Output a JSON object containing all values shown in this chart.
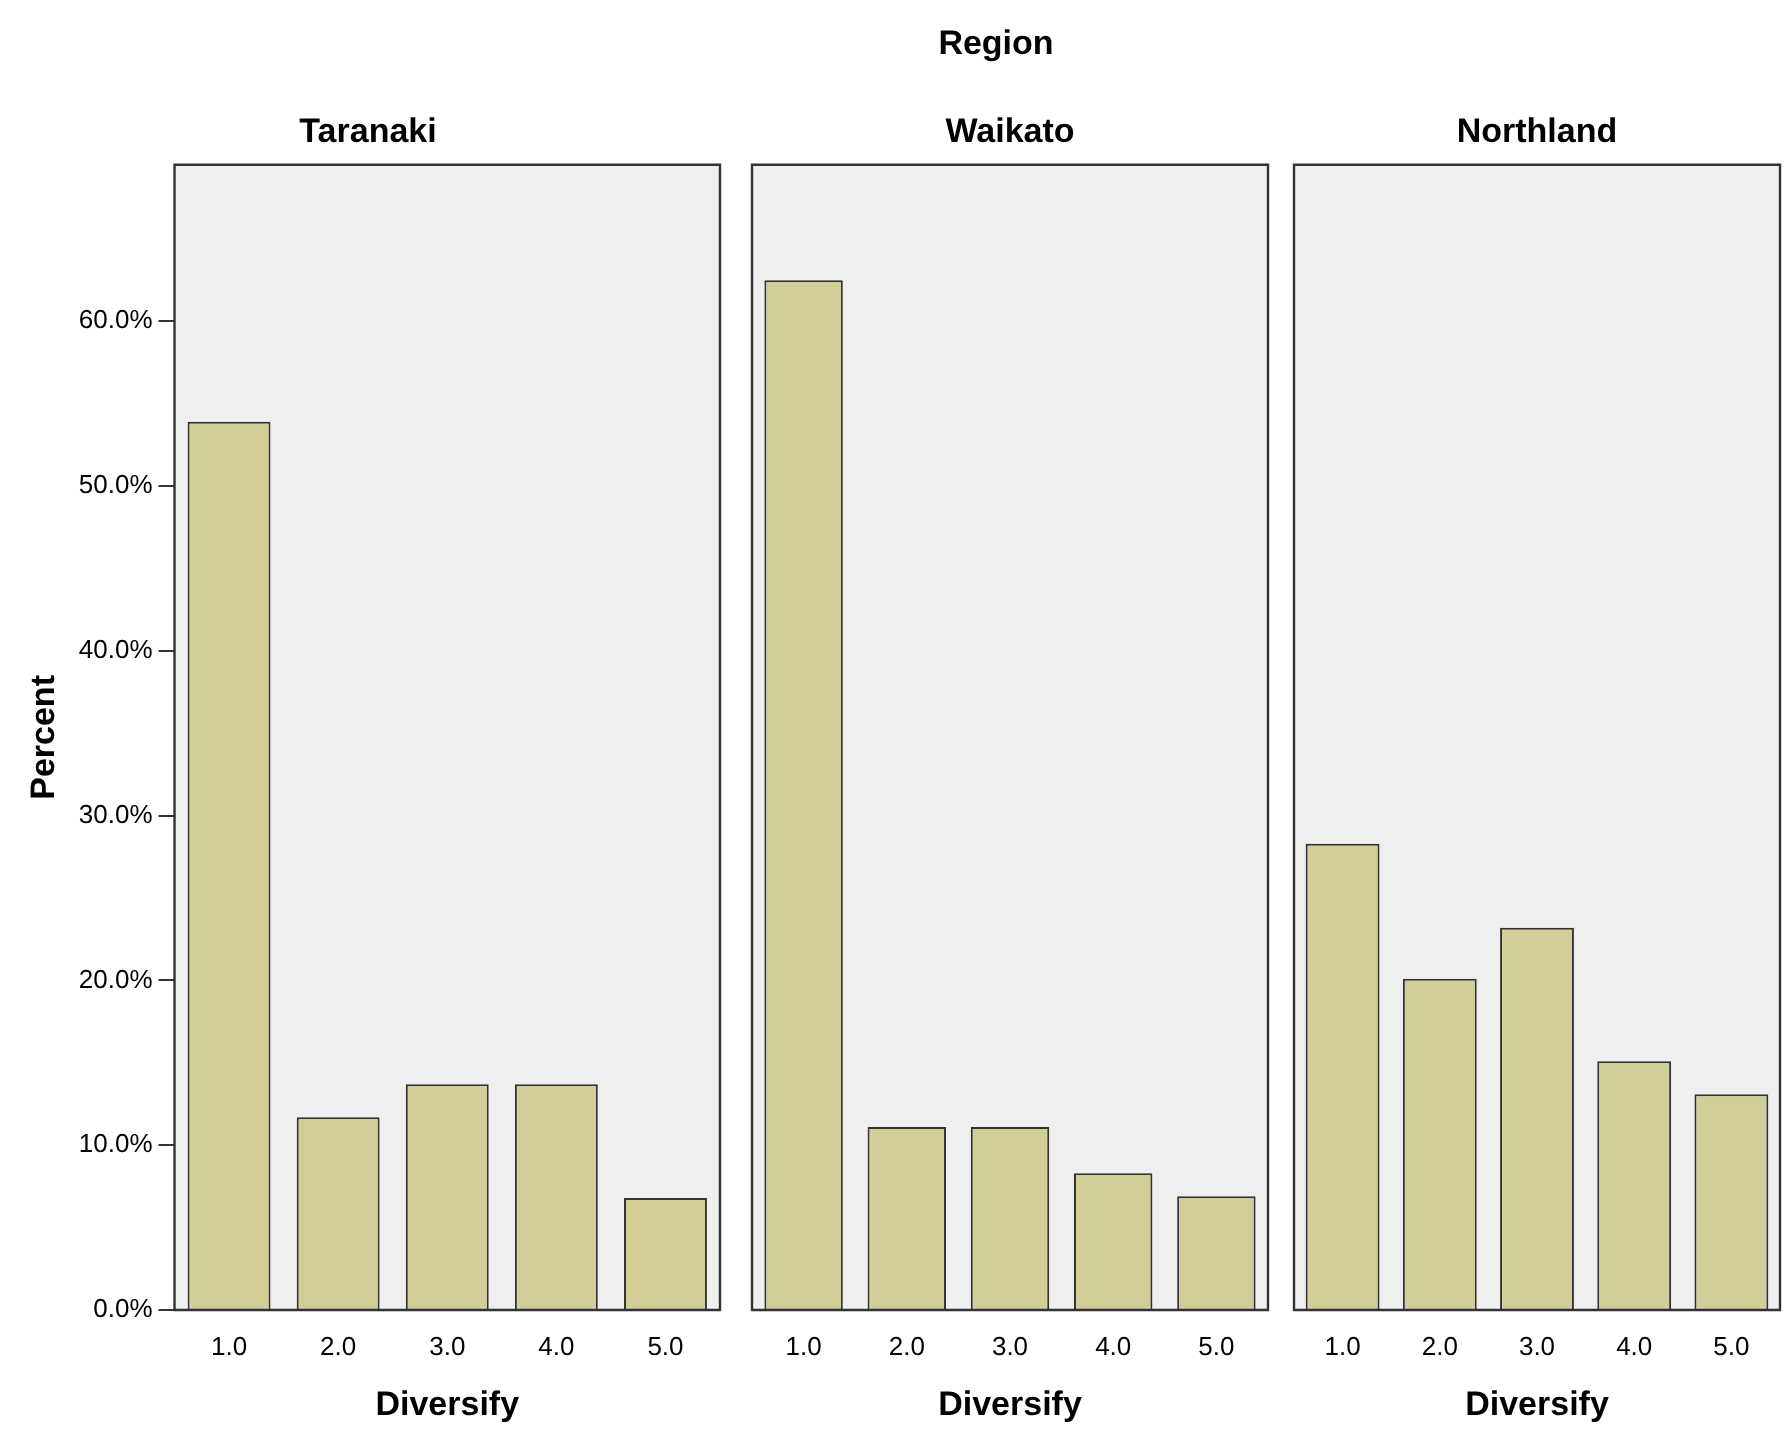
{
  "chart_data": [
    {
      "type": "bar",
      "title": "Taranaki",
      "annotations": [
        "Region"
      ],
      "xlabel": "Diversify",
      "ylabel": "Percent",
      "categories": [
        "1.0",
        "2.0",
        "3.0",
        "4.0",
        "5.0"
      ],
      "values": [
        53.9,
        11.7,
        13.7,
        13.7,
        6.8
      ],
      "color": "#d3cd97",
      "ylim": [
        0,
        69.5
      ],
      "yticks": [
        {
          "value": 0,
          "label": "0.0%"
        },
        {
          "value": 10,
          "label": "10.0%"
        },
        {
          "value": 20,
          "label": "20.0%"
        },
        {
          "value": 30,
          "label": "30.0%"
        },
        {
          "value": 40,
          "label": "40.0%"
        },
        {
          "value": 50,
          "label": "50.0%"
        },
        {
          "value": 60,
          "label": "60.0%"
        }
      ],
      "grid": false,
      "legend": false
    },
    {
      "type": "bar",
      "title": "Waikato",
      "xlabel": "Diversify",
      "categories": [
        "1.0",
        "2.0",
        "3.0",
        "4.0",
        "5.0"
      ],
      "values": [
        62.5,
        11.1,
        11.1,
        8.3,
        6.9
      ],
      "color": "#d3cd97",
      "ylim": [
        0,
        69.5
      ],
      "tick_labels": "x",
      "grid": false,
      "legend": false
    },
    {
      "type": "bar",
      "title": "Northland",
      "xlabel": "Diversify",
      "categories": [
        "1.0",
        "2.0",
        "3.0",
        "4.0",
        "5.0"
      ],
      "values": [
        28.3,
        20.1,
        23.2,
        15.1,
        13.1
      ],
      "color": "#d3cd97",
      "ylim": [
        0,
        69.5
      ],
      "tick_labels": "x",
      "grid": false,
      "legend": false
    }
  ]
}
